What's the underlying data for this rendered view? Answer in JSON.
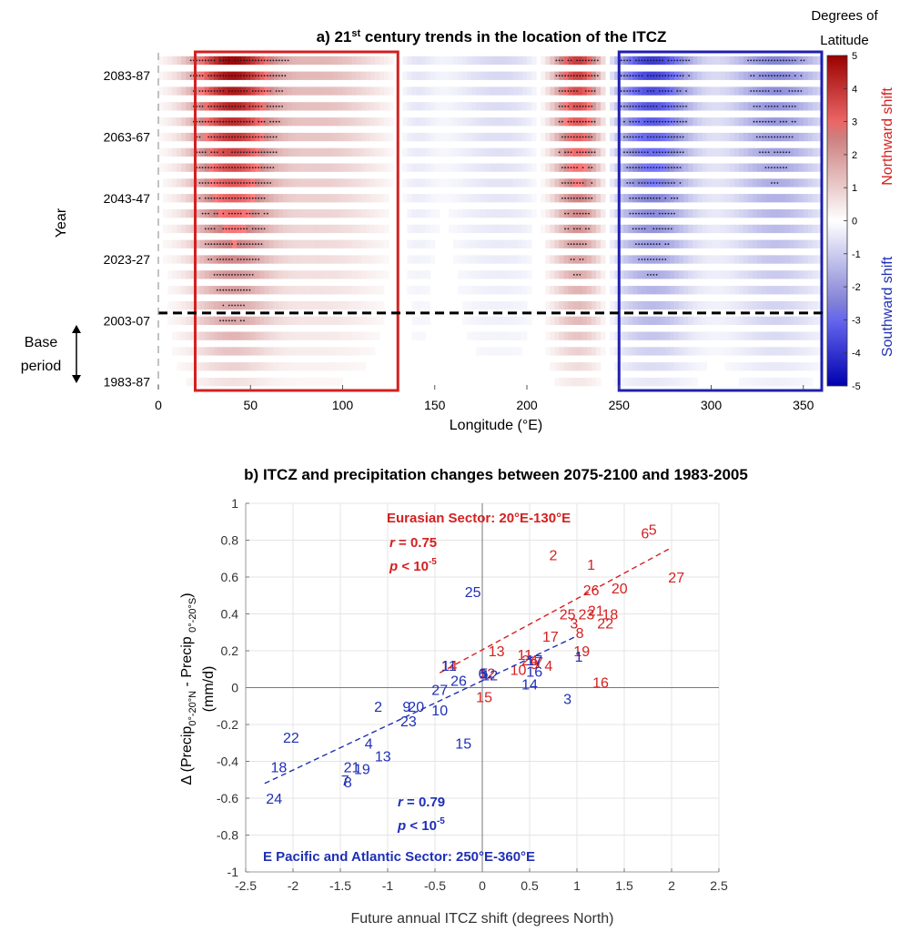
{
  "panel_a": {
    "title_parts": [
      "a) 21",
      "st",
      " century trends in the location of the ITCZ"
    ],
    "colorbar_title": [
      "Degrees of",
      "Latitude"
    ],
    "north_label": "Northward shift",
    "south_label": "Southward shift",
    "base_label": [
      "Base",
      "period"
    ],
    "colors": {
      "north": "#b2182b",
      "south": "#1f2fb5",
      "north_box": "#d42020",
      "south_box": "#1f1fb0"
    }
  },
  "panel_b": {
    "title": "b) ITCZ and precipitation changes between 2075-2100 and 1983-2005",
    "eurasian_label": "Eurasian Sector: 20°E-130°E",
    "eurasian_r": "r = 0.75",
    "eurasian_p": "p < 10",
    "eurasian_p_exp": "-5",
    "pacific_label": "E Pacific and Atlantic Sector: 250°E-360°E",
    "pacific_r": "r = 0.79",
    "pacific_p": "p < 10",
    "pacific_p_exp": "-5",
    "colors": {
      "eurasian": "#d42020",
      "pacific": "#1f2fb5"
    }
  },
  "chart_data": [
    {
      "type": "heatmap",
      "title": "a) 21st century trends in the location of the ITCZ",
      "xlabel": "Longitude (°E)",
      "ylabel": "Year",
      "xlim": [
        0,
        360
      ],
      "xticks": [
        0,
        50,
        100,
        150,
        200,
        250,
        300,
        350
      ],
      "yticks": [
        "1983-87",
        "2003-07",
        "2023-27",
        "2043-47",
        "2063-67",
        "2083-87"
      ],
      "n_rows": 22,
      "base_period_rows": 5,
      "colorbar": {
        "title": "Degrees of Latitude",
        "min": -5,
        "max": 5,
        "ticks": [
          5,
          4,
          3,
          2,
          1,
          0,
          -1,
          -2,
          -3,
          -4,
          -5
        ]
      },
      "highlight_boxes": [
        {
          "name": "Eurasian Sector",
          "lon_range": [
            20,
            130
          ],
          "color": "#d42020"
        },
        {
          "name": "E Pacific and Atlantic Sector",
          "lon_range": [
            250,
            360
          ],
          "color": "#1f1fb0"
        }
      ],
      "field_components": [
        {
          "center": 40,
          "width": 22,
          "amplitude": 4.8
        },
        {
          "center": 90,
          "width": 30,
          "amplitude": 1.4
        },
        {
          "center": 228,
          "width": 14,
          "amplitude": 4.0
        },
        {
          "center": 268,
          "width": 22,
          "amplitude": -3.8
        },
        {
          "center": 335,
          "width": 25,
          "amplitude": -2.4
        },
        {
          "center": 185,
          "width": 25,
          "amplitude": -0.8
        },
        {
          "center": 140,
          "width": 10,
          "amplitude": -0.6
        }
      ]
    },
    {
      "type": "scatter",
      "title": "b) ITCZ and precipitation changes between 2075-2100 and 1983-2005",
      "xlabel": "Future annual ITCZ shift (degrees North)",
      "ylabel": "Δ (Precip 0°-20°N - Precip 0°-20°S) (mm/d)",
      "xlim": [
        -2.5,
        2.5
      ],
      "ylim": [
        -1,
        1
      ],
      "xticks": [
        -2.5,
        -2,
        -1.5,
        -1,
        -0.5,
        0,
        0.5,
        1,
        1.5,
        2,
        2.5
      ],
      "yticks": [
        1,
        0.8,
        0.6,
        0.4,
        0.2,
        0,
        -0.2,
        -0.4,
        -0.6,
        -0.8,
        -1
      ],
      "grid": true,
      "series": [
        {
          "name": "Eurasian Sector: 20°E-130°E",
          "color": "#d42020",
          "fit": {
            "x": [
              -0.45,
              2.0
            ],
            "y": [
              0.08,
              0.76
            ]
          },
          "points": [
            {
              "label": "1",
              "x": 1.15,
              "y": 0.67
            },
            {
              "label": "2",
              "x": 0.75,
              "y": 0.72
            },
            {
              "label": "3",
              "x": 0.97,
              "y": 0.35
            },
            {
              "label": "4",
              "x": 0.7,
              "y": 0.12
            },
            {
              "label": "5",
              "x": 1.8,
              "y": 0.86
            },
            {
              "label": "6",
              "x": 1.72,
              "y": 0.84
            },
            {
              "label": "7",
              "x": 0.6,
              "y": 0.14
            },
            {
              "label": "8",
              "x": 1.03,
              "y": 0.3
            },
            {
              "label": "9",
              "x": 0.55,
              "y": 0.13
            },
            {
              "label": "10",
              "x": 0.38,
              "y": 0.1
            },
            {
              "label": "11",
              "x": 0.45,
              "y": 0.18
            },
            {
              "label": "12",
              "x": 0.05,
              "y": 0.08
            },
            {
              "label": "13",
              "x": 0.15,
              "y": 0.2
            },
            {
              "label": "14",
              "x": -0.35,
              "y": 0.12
            },
            {
              "label": "15",
              "x": 0.02,
              "y": -0.05
            },
            {
              "label": "16",
              "x": 1.25,
              "y": 0.03
            },
            {
              "label": "17",
              "x": 0.72,
              "y": 0.28
            },
            {
              "label": "18",
              "x": 1.35,
              "y": 0.4
            },
            {
              "label": "19",
              "x": 1.05,
              "y": 0.2
            },
            {
              "label": "20",
              "x": 1.45,
              "y": 0.54
            },
            {
              "label": "21",
              "x": 1.2,
              "y": 0.42
            },
            {
              "label": "22",
              "x": 1.3,
              "y": 0.35
            },
            {
              "label": "23",
              "x": 1.1,
              "y": 0.4
            },
            {
              "label": "24",
              "x": 0.5,
              "y": 0.15
            },
            {
              "label": "25",
              "x": 0.9,
              "y": 0.4
            },
            {
              "label": "26",
              "x": 1.15,
              "y": 0.53
            },
            {
              "label": "27",
              "x": 2.05,
              "y": 0.6
            }
          ]
        },
        {
          "name": "E Pacific and Atlantic Sector: 250°E-360°E",
          "color": "#1f2fb5",
          "fit": {
            "x": [
              -2.3,
              1.0
            ],
            "y": [
              -0.52,
              0.28
            ]
          },
          "points": [
            {
              "label": "1",
              "x": 1.02,
              "y": 0.17
            },
            {
              "label": "2",
              "x": -1.1,
              "y": -0.1
            },
            {
              "label": "3",
              "x": 0.9,
              "y": -0.06
            },
            {
              "label": "4",
              "x": -1.2,
              "y": -0.3
            },
            {
              "label": "5",
              "x": 0.02,
              "y": 0.08
            },
            {
              "label": "6",
              "x": 0.0,
              "y": 0.08
            },
            {
              "label": "7",
              "x": -1.45,
              "y": -0.5
            },
            {
              "label": "8",
              "x": -1.42,
              "y": -0.51
            },
            {
              "label": "9",
              "x": -0.8,
              "y": -0.1
            },
            {
              "label": "10",
              "x": -0.45,
              "y": -0.12
            },
            {
              "label": "11",
              "x": -0.35,
              "y": 0.12
            },
            {
              "label": "12",
              "x": 0.08,
              "y": 0.07
            },
            {
              "label": "13",
              "x": -1.05,
              "y": -0.37
            },
            {
              "label": "14",
              "x": 0.5,
              "y": 0.02
            },
            {
              "label": "15",
              "x": -0.2,
              "y": -0.3
            },
            {
              "label": "16",
              "x": 0.55,
              "y": 0.09
            },
            {
              "label": "17",
              "x": 0.55,
              "y": 0.15
            },
            {
              "label": "18",
              "x": -2.15,
              "y": -0.43
            },
            {
              "label": "19",
              "x": -1.27,
              "y": -0.44
            },
            {
              "label": "20",
              "x": -0.7,
              "y": -0.1
            },
            {
              "label": "21",
              "x": -1.38,
              "y": -0.43
            },
            {
              "label": "22",
              "x": -2.02,
              "y": -0.27
            },
            {
              "label": "23",
              "x": -0.78,
              "y": -0.18
            },
            {
              "label": "24",
              "x": -2.2,
              "y": -0.6
            },
            {
              "label": "25",
              "x": -0.1,
              "y": 0.52
            },
            {
              "label": "26",
              "x": -0.25,
              "y": 0.04
            },
            {
              "label": "27",
              "x": -0.45,
              "y": -0.01
            }
          ]
        }
      ]
    }
  ]
}
